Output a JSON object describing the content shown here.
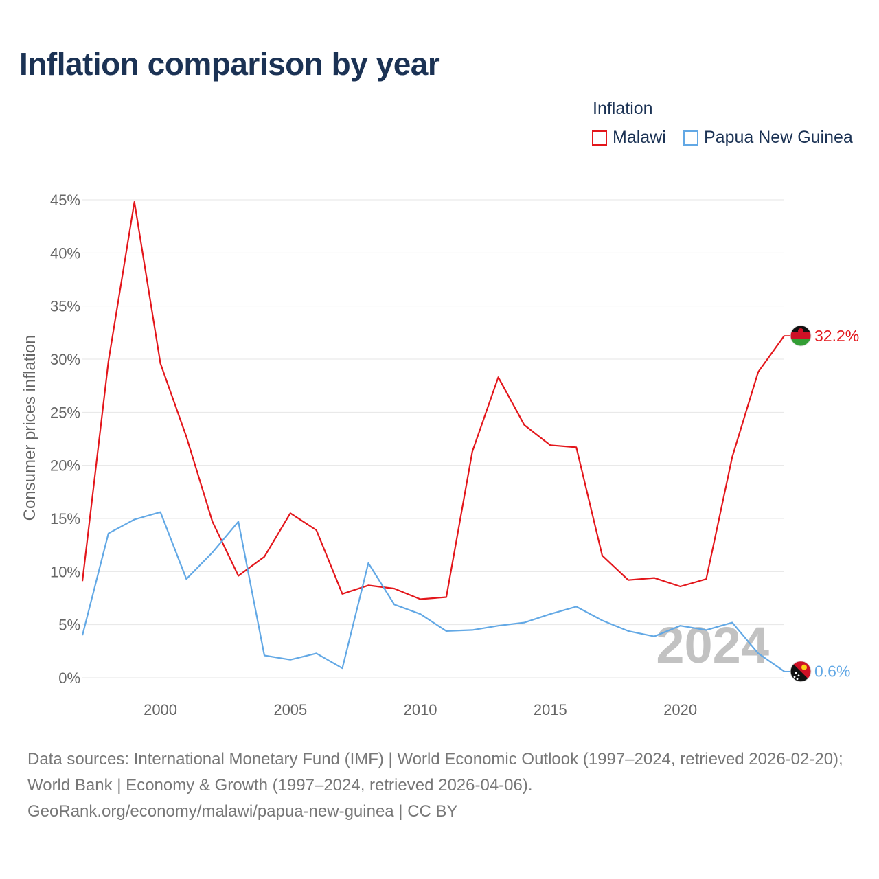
{
  "title": "Inflation comparison by year",
  "legend": {
    "title": "Inflation",
    "items": [
      {
        "label": "Malawi",
        "color": "#e3161b"
      },
      {
        "label": "Papua New Guinea",
        "color": "#62a8e5"
      }
    ]
  },
  "chart_data": {
    "type": "line",
    "title": "Inflation comparison by year",
    "xlabel": "",
    "ylabel": "Consumer prices inflation",
    "x": [
      1997,
      1998,
      1999,
      2000,
      2001,
      2002,
      2003,
      2004,
      2005,
      2006,
      2007,
      2008,
      2009,
      2010,
      2011,
      2012,
      2013,
      2014,
      2015,
      2016,
      2017,
      2018,
      2019,
      2020,
      2021,
      2022,
      2023,
      2024
    ],
    "xlim": [
      1997,
      2024
    ],
    "ylim": [
      0,
      45
    ],
    "x_ticks": [
      2000,
      2005,
      2010,
      2015,
      2020
    ],
    "y_ticks": [
      0,
      5,
      10,
      15,
      20,
      25,
      30,
      35,
      40,
      45
    ],
    "y_tick_labels": [
      "0%",
      "5%",
      "10%",
      "15%",
      "20%",
      "25%",
      "30%",
      "35%",
      "40%",
      "45%"
    ],
    "grid": true,
    "series": [
      {
        "name": "Malawi",
        "color": "#e3161b",
        "values": [
          9.1,
          29.8,
          44.8,
          29.6,
          22.7,
          14.7,
          9.6,
          11.4,
          15.5,
          13.9,
          7.9,
          8.7,
          8.4,
          7.4,
          7.6,
          21.3,
          28.3,
          23.8,
          21.9,
          21.7,
          11.5,
          9.2,
          9.4,
          8.6,
          9.3,
          20.8,
          28.8,
          32.2
        ],
        "end_label": "32.2%"
      },
      {
        "name": "Papua New Guinea",
        "color": "#62a8e5",
        "values": [
          4.0,
          13.6,
          14.9,
          15.6,
          9.3,
          11.8,
          14.7,
          2.1,
          1.7,
          2.3,
          0.9,
          10.8,
          6.9,
          6.0,
          4.4,
          4.5,
          4.9,
          5.2,
          6.0,
          6.7,
          5.4,
          4.4,
          3.9,
          4.9,
          4.5,
          5.2,
          2.3,
          0.6
        ],
        "end_label": "0.6%"
      }
    ],
    "year_watermark": "2024"
  },
  "footer": {
    "sources": "Data sources: International Monetary Fund (IMF) | World Economic Outlook (1997–2024, retrieved 2026-02-20); World Bank | Economy & Growth (1997–2024, retrieved 2026-04-06).",
    "credit": "GeoRank.org/economy/malawi/papua-new-guinea | CC BY"
  }
}
